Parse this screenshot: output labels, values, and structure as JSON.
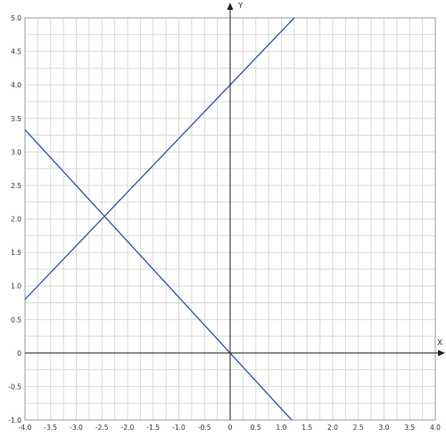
{
  "chart_data": {
    "type": "line",
    "xlabel": "X",
    "ylabel": "Y",
    "xlim": [
      -4.0,
      4.0
    ],
    "ylim": [
      -1.0,
      5.0
    ],
    "grid": true,
    "x_ticks": [
      "-4.0",
      "-3.5",
      "-3.0",
      "-2.5",
      "-2.0",
      "-1.5",
      "-1.0",
      "-0.5",
      "0",
      "0.5",
      "1.0",
      "1.5",
      "2.0",
      "2.5",
      "3.0",
      "3.5",
      "4.0"
    ],
    "y_ticks": [
      "-1.0",
      "-0.5",
      "0",
      "0.5",
      "1.0",
      "1.5",
      "2.0",
      "2.5",
      "3.0",
      "3.5",
      "4.0",
      "4.5",
      "5.0"
    ],
    "series": [
      {
        "x": [
          -4.0,
          1.25
        ],
        "y": [
          0.8,
          5.0
        ]
      },
      {
        "x": [
          -4.0,
          1.2
        ],
        "y": [
          3.33,
          -1.0
        ]
      }
    ],
    "colors": {
      "line": "#3a5ea8",
      "grid": "#d9d9d9",
      "axis": "#222222",
      "frame": "#9a9a9a"
    }
  }
}
